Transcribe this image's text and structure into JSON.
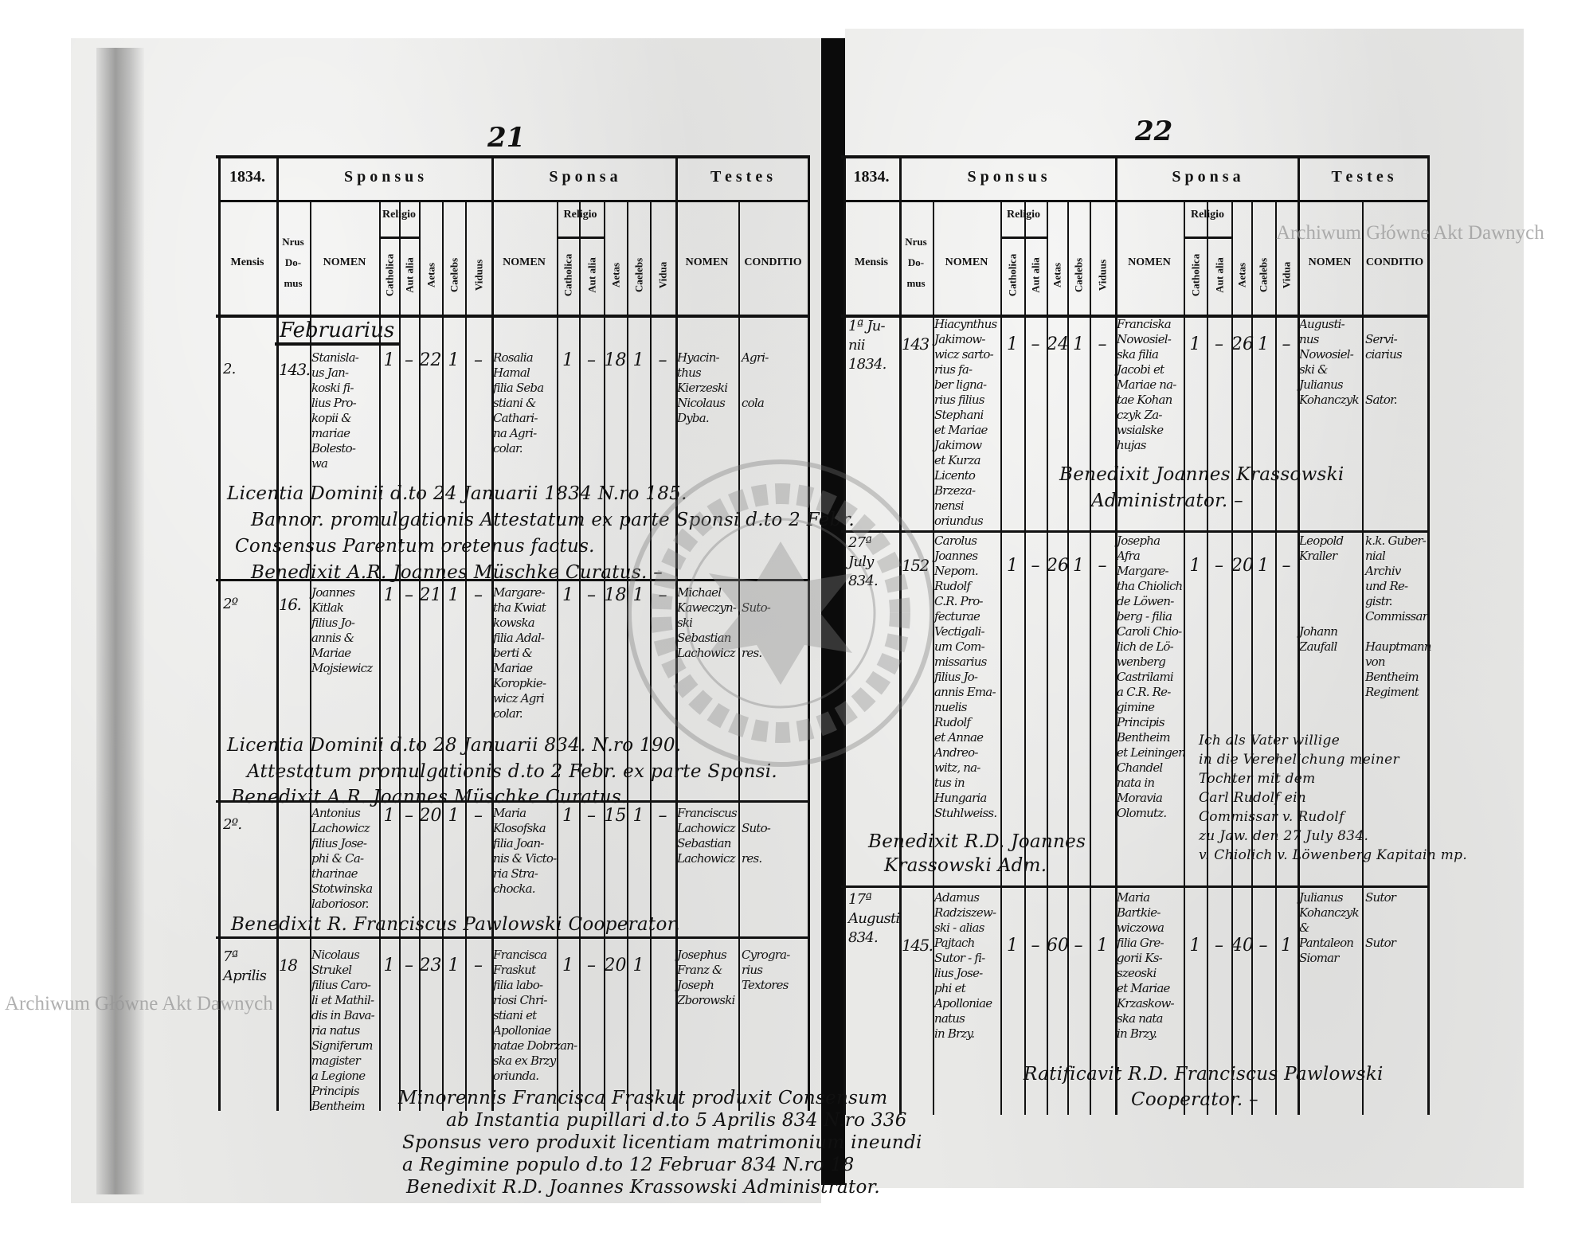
{
  "watermark": "Archiwum Główne Akt Dawnych",
  "stamp_text": "ARCHIWUM GŁÓWNE AKT DAWNYCH",
  "header": {
    "sponsus": "S p o n s u s",
    "sponsa": "S p o n s a",
    "testes": "T e s t e s",
    "religio": "Religio",
    "mensis": "Mensis",
    "nrus_domus": "Nrus\nDo-\nmus",
    "nomen": "NOMEN",
    "catholica": "Catholica",
    "aut_alia": "Aut alia",
    "aetas": "Aetas",
    "caelebs": "Caelebs",
    "viduus": "Viduus",
    "vidua": "Vidua",
    "conditio": "CONDITIO"
  },
  "pages": [
    {
      "page_number": "21",
      "year": "1834.",
      "section_label": "Februarius",
      "entries": [
        {
          "mensis": "2.",
          "nrus": "143.",
          "sponsus_nomen": "Stanisla-\nus Jan-\nkoski fi-\nlius Pro-\nkopii &\nmariae\nBolesto-\nwa",
          "sponsus_catholica": "1",
          "sponsus_aut_alia": "–",
          "sponsus_aetas": "22",
          "sponsus_caelebs": "1",
          "sponsus_viduus": "–",
          "sponsa_nomen": "Rosalia\nHamal\nfilia Seba\nstiani &\nCathari-\nna Agri-\ncolar.",
          "sponsa_catholica": "1",
          "sponsa_aut_alia": "–",
          "sponsa_aetas": "18",
          "sponsa_caelebs": "1",
          "sponsa_vidua": "–",
          "testes_nomen": "Hyacin-\nthus\nKierzeski\nNicolaus\nDyba.",
          "testes_conditio": "Agri-\n\n\ncola",
          "remarks": [
            "Licentia Dominii d.to 24 Januarii 1834 N.ro 185.",
            "Bannor. promulgationis Attestatum ex parte Sponsi d.to 2 Febr.",
            "Consensus Parentum oretenus factus.",
            "Benedixit A.R. Joannes Müschke Curatus. –"
          ]
        },
        {
          "mensis": "2º",
          "nrus": "16.",
          "sponsus_nomen": "Joannes\nKitlak\nfilius Jo-\nannis &\nMariae\nMojsiewicz",
          "sponsus_catholica": "1",
          "sponsus_aut_alia": "–",
          "sponsus_aetas": "21",
          "sponsus_caelebs": "1",
          "sponsus_viduus": "–",
          "sponsa_nomen": "Margare-\ntha Kwiat\nkowska\nfilia Adal-\nberti &\nMariae\nKoropkie-\nwicz Agri\ncolar.",
          "sponsa_catholica": "1",
          "sponsa_aut_alia": "–",
          "sponsa_aetas": "18",
          "sponsa_caelebs": "1",
          "sponsa_vidua": "–",
          "testes_nomen": "Michael\nKaweczyn-\nski\nSebastian\nLachowicz",
          "testes_conditio": "\nSuto-\n\n\nres.",
          "remarks": [
            "Licentia Dominii d.to 28 Januarii 834. N.ro 190.",
            "Attestatum promulgationis d.to 2 Febr. ex parte Sponsi.",
            "Benedixit A.R. Joannes Müschke Curatus."
          ]
        },
        {
          "mensis": "2º.",
          "nrus": "",
          "sponsus_nomen": "Antonius\nLachowicz\nfilius Jose-\nphi & Ca-\ntharinae\nStotwinska\nlaboriosor.",
          "sponsus_catholica": "1",
          "sponsus_aut_alia": "–",
          "sponsus_aetas": "20",
          "sponsus_caelebs": "1",
          "sponsus_viduus": "–",
          "sponsa_nomen": "Maria\nKlosofska\nfilia Joan-\nnis & Victo-\nria Stra-\nchocka.",
          "sponsa_catholica": "1",
          "sponsa_aut_alia": "–",
          "sponsa_aetas": "15",
          "sponsa_caelebs": "1",
          "sponsa_vidua": "–",
          "testes_nomen": "Franciscus\nLachowicz\nSebastian\nLachowicz",
          "testes_conditio": "\nSuto-\n\nres.",
          "remarks": [
            "Benedixit R. Franciscus Pawlowski Cooperator."
          ]
        },
        {
          "mensis": "7ª\nAprilis",
          "nrus": "18",
          "sponsus_nomen": "Nicolaus\nStrukel\nfilius Caro-\nli et Mathil-\ndis in Bava-\nria natus\nSigniferum\nmagister\na Legione\nPrincipis\nBentheim",
          "sponsus_catholica": "1",
          "sponsus_aut_alia": "–",
          "sponsus_aetas": "23",
          "sponsus_caelebs": "1",
          "sponsus_viduus": "–",
          "sponsa_nomen": "Francisca\nFraskut\nfilia labo-\nriosi Chri-\nstiani et\nApolloniae\nnatae Dobrzan-\nska ex Brzy\noriunda.",
          "sponsa_catholica": "1",
          "sponsa_aut_alia": "–",
          "sponsa_aetas": "20",
          "sponsa_caelebs": "1",
          "sponsa_vidua": "",
          "testes_nomen": "Josephus\nFranz &\nJoseph\nZborowski",
          "testes_conditio": "Cyrogra-\nrius\nTextores",
          "remarks": [
            "Minorennis Francisca Fraskut produxit Consensum",
            "ab Instantia pupillari d.to 5 Aprilis 834 N.ro 336",
            "Sponsus vero produxit licentiam matrimonium ineundi",
            "a Regimine populo d.to 12 Februar 834 N.ro 18",
            "Benedixit R.D. Joannes Krassowski Administrator."
          ]
        }
      ]
    },
    {
      "page_number": "22",
      "year": "1834.",
      "entries": [
        {
          "mensis": "1ª Ju-\nnii\n1834.",
          "nrus": "143",
          "sponsus_nomen": "Hiacynthus\nJakimow-\nwicz sarto-\nrius fa-\nber ligna-\nrius filius\nStephani\net Mariae\nJakimow\net Kurza\nLicento\nBrzeza-\nnensi\noriundus",
          "sponsus_catholica": "1",
          "sponsus_aut_alia": "–",
          "sponsus_aetas": "24",
          "sponsus_caelebs": "1",
          "sponsus_viduus": "–",
          "sponsa_nomen": "Franciska\nNowosiel-\nska filia\nJacobi et\nMariae na-\ntae Kohan\nczyk Za-\nwsialske\nhujas",
          "sponsa_catholica": "1",
          "sponsa_aut_alia": "–",
          "sponsa_aetas": "26",
          "sponsa_caelebs": "1",
          "sponsa_vidua": "–",
          "testes_nomen": "Augusti-\nnus\nNowosiel-\nski &\nJulianus\nKohanczyk",
          "testes_conditio": "\nServi-\nciarius\n\n\nSator.",
          "remarks": [
            "Benedixit Joannes Krassowski",
            "Administrator. –"
          ]
        },
        {
          "mensis": "27ª\nJuly\n834.",
          "nrus": "152",
          "sponsus_nomen": "Carolus\nJoannes\nNepom.\nRudolf\nC.R. Pro-\nfecturae\nVectigali-\num Com-\nmissarius\nfilius Jo-\nannis Ema-\nnuelis\nRudolf\net Annae\nAndreo-\nwitz, na-\ntus in\nHungaria\nStuhlweiss.",
          "sponsus_catholica": "1",
          "sponsus_aut_alia": "–",
          "sponsus_aetas": "26",
          "sponsus_caelebs": "1",
          "sponsus_viduus": "–",
          "sponsa_nomen": "Josepha\nAfra\nMargare-\ntha Chiolich\nde Löwen-\nberg - filia\nCaroli Chio-\nlich de Lö-\nwenberg\nCastrilami\na C.R. Re-\ngimine\nPrincipis\nBentheim\net Leiningen\nChandel\nnata in\nMoravia\nOlomutz.",
          "sponsa_catholica": "1",
          "sponsa_aut_alia": "–",
          "sponsa_aetas": "20",
          "sponsa_caelebs": "1",
          "sponsa_vidua": "–",
          "testes_nomen": "Leopold\nKraller\n\n\n\n\nJohann\nZaufall",
          "testes_conditio": "k.k. Guber-\nnial\nArchiv\nund Re-\ngistr.\nCommissar\n\nHauptmann\nvon\nBentheim\nRegiment",
          "remarks": [
            "Benedixit R.D. Joannes",
            "Krassowski Adm.",
            "Ich als Vater willige",
            "in die Verehelichung meiner",
            "Tochter mit dem",
            "Carl Rudolf ein",
            "Commissar v. Rudolf",
            "zu Jaw. den 27 July 834.",
            "v. Chiolich v. Löwenberg Kapitain mp."
          ]
        },
        {
          "mensis": "17ª\nAugusti\n834.",
          "nrus": "145.",
          "sponsus_nomen": "Adamus\nRadziszew-\nski - alias\nPajtach\nSutor - fi-\nlius Jose-\nphi et\nApolloniae\nnatus\nin Brzy.",
          "sponsus_catholica": "1",
          "sponsus_aut_alia": "–",
          "sponsus_aetas": "60",
          "sponsus_caelebs": "–",
          "sponsus_viduus": "1",
          "sponsa_nomen": "Maria\nBartkie-\nwiczowa\nfilia Gre-\ngorii Ks-\nszeoski\net Mariae\nKrzaskow-\nska nata\nin Brzy.",
          "sponsa_catholica": "1",
          "sponsa_aut_alia": "–",
          "sponsa_aetas": "40",
          "sponsa_caelebs": "–",
          "sponsa_vidua": "1",
          "testes_nomen": "Julianus\nKohanczyk\n&\nPantaleon\nSiomar",
          "testes_conditio": "Sutor\n\n\nSutor",
          "remarks": [
            "Ratificavit R.D. Franciscus Pawlowski",
            "Cooperator. –"
          ]
        }
      ]
    }
  ]
}
